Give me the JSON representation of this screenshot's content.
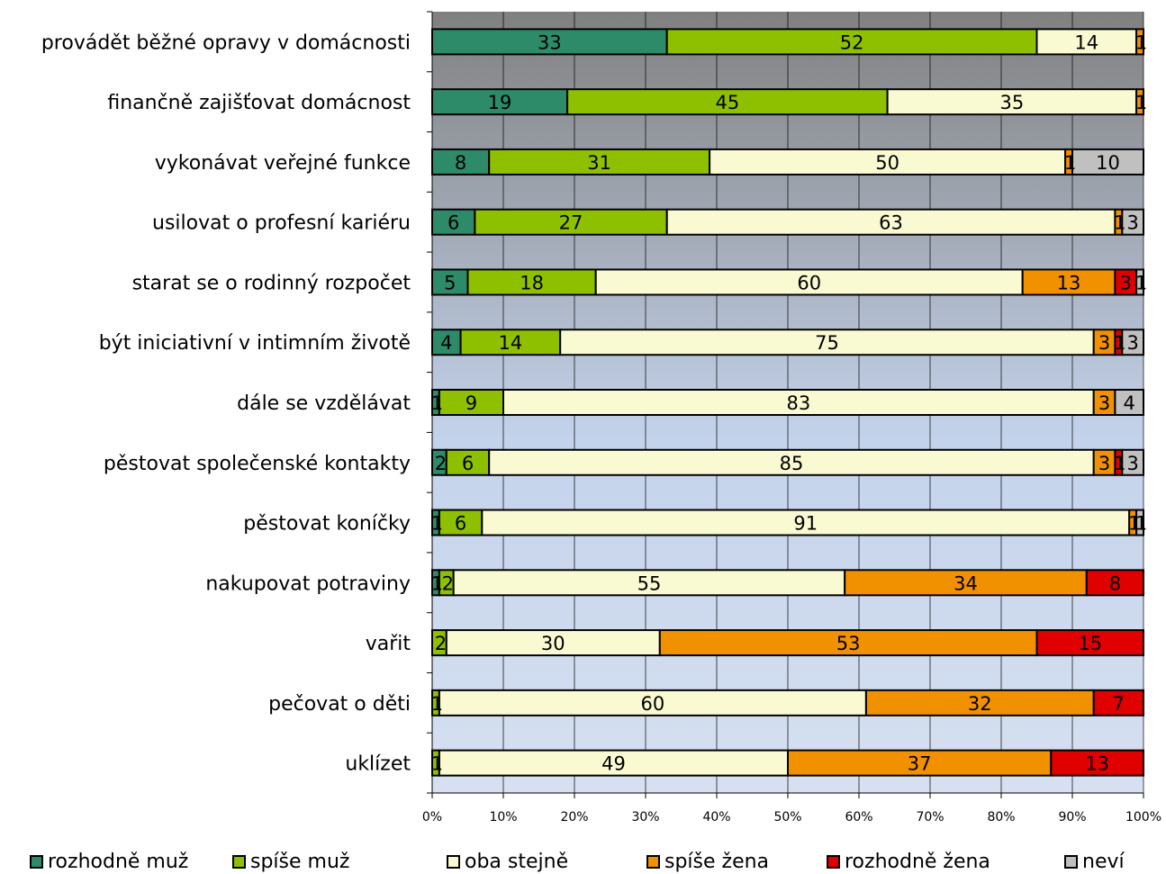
{
  "chart_data": {
    "type": "bar",
    "orientation": "horizontal",
    "stacked": true,
    "percent_stacked": true,
    "categories": [
      "provádět běžné opravy v domácnosti",
      "finančně zajišťovat domácnost",
      "vykonávat veřejné funkce",
      "usilovat o profesní kariéru",
      "starat se o rodinný rozpočet",
      "být iniciativní v intimním životě",
      "dále se vzdělávat",
      "pěstovat společenské kontakty",
      "pěstovat koníčky",
      "nakupovat potraviny",
      "vařit",
      "pečovat o děti",
      "uklízet"
    ],
    "series": [
      {
        "name": "rozhodně muž",
        "color": "#2e8b6a",
        "values": [
          33,
          19,
          8,
          6,
          5,
          4,
          1,
          2,
          1,
          1,
          0,
          0,
          0
        ]
      },
      {
        "name": "spíše muž",
        "color": "#8fc000",
        "values": [
          52,
          45,
          31,
          27,
          18,
          14,
          9,
          6,
          6,
          2,
          2,
          1,
          1
        ]
      },
      {
        "name": "oba stejně",
        "color": "#fafad2",
        "values": [
          14,
          35,
          50,
          63,
          60,
          75,
          83,
          85,
          91,
          55,
          30,
          60,
          49
        ]
      },
      {
        "name": "spíše žena",
        "color": "#f29100",
        "values": [
          1,
          1,
          1,
          1,
          13,
          3,
          3,
          3,
          1,
          34,
          53,
          32,
          37
        ]
      },
      {
        "name": "rozhodně žena",
        "color": "#e00000",
        "values": [
          0,
          0,
          0,
          0,
          3,
          1,
          0,
          1,
          0,
          8,
          15,
          7,
          13
        ]
      },
      {
        "name": "neví",
        "color": "#c0c0c0",
        "values": [
          0,
          0,
          10,
          3,
          1,
          3,
          4,
          3,
          1,
          0,
          0,
          0,
          0
        ]
      }
    ],
    "xlim": [
      0,
      100
    ],
    "x_ticks": [
      "0%",
      "10%",
      "20%",
      "30%",
      "40%",
      "50%",
      "60%",
      "70%",
      "80%",
      "90%",
      "100%"
    ],
    "grid": true,
    "legend_position": "bottom",
    "background_gradient": [
      "#808080",
      "#d6e0f0"
    ]
  }
}
